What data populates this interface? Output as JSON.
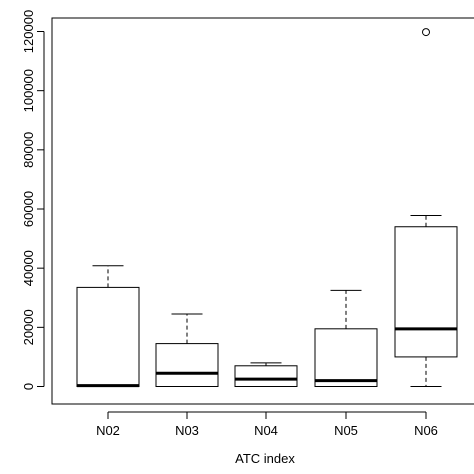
{
  "chart_data": {
    "type": "boxplot",
    "title": "",
    "xlabel": "ATC index",
    "ylabel": "",
    "categories": [
      "N02",
      "N03",
      "N04",
      "N05",
      "N06"
    ],
    "ylim": [
      -5000,
      128000
    ],
    "yticks": [
      0,
      20000,
      40000,
      60000,
      80000,
      100000,
      120000
    ],
    "ytick_labels": [
      "0",
      "20000",
      "40000",
      "60000",
      "80000",
      "100000",
      "120000"
    ],
    "grid": false,
    "boxes": [
      {
        "category": "N02",
        "whisker_low": 0,
        "q1": 0,
        "median": 300,
        "q3": 33500,
        "whisker_high": 40800,
        "outliers": []
      },
      {
        "category": "N03",
        "whisker_low": 0,
        "q1": 0,
        "median": 4500,
        "q3": 14500,
        "whisker_high": 24500,
        "outliers": []
      },
      {
        "category": "N04",
        "whisker_low": 0,
        "q1": 0,
        "median": 2500,
        "q3": 7000,
        "whisker_high": 8000,
        "outliers": []
      },
      {
        "category": "N05",
        "whisker_low": 0,
        "q1": 0,
        "median": 2000,
        "q3": 19500,
        "whisker_high": 32500,
        "outliers": []
      },
      {
        "category": "N06",
        "whisker_low": 0,
        "q1": 10000,
        "median": 19500,
        "q3": 54000,
        "whisker_high": 57800,
        "outliers": [
          119800
        ]
      }
    ]
  }
}
